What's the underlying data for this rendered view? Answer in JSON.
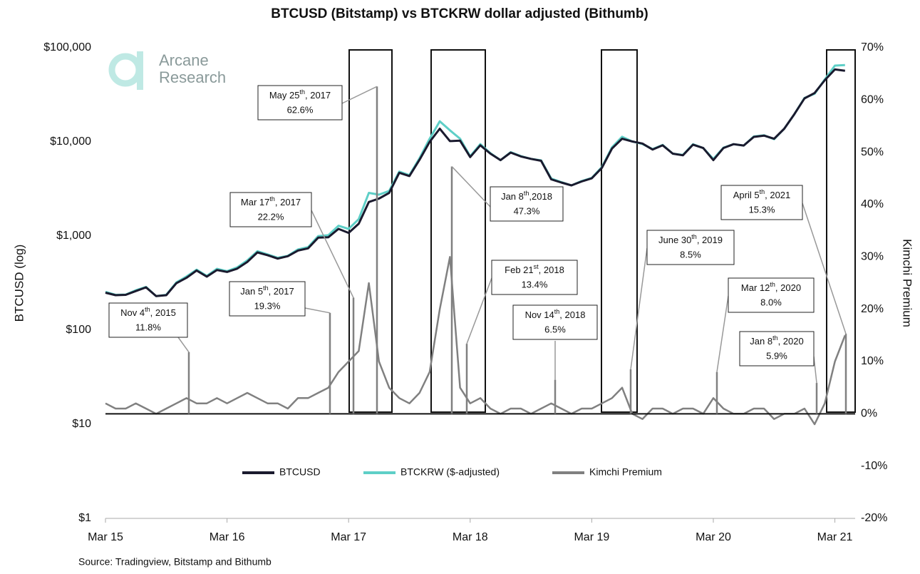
{
  "chart_data": {
    "type": "line",
    "title": "BTCUSD (Bitstamp) vs BTCKRW dollar adjusted (Bithumb)",
    "ylabel": "BTCUSD (log)",
    "y2label": "Kimchi Premium",
    "source": "Source: Tradingview, Bitstamp and Bithumb",
    "logo": [
      "Arcane",
      "Research"
    ],
    "log_y": true,
    "legend": "bottom",
    "x": [
      "2015-03",
      "2015-04",
      "2015-05",
      "2015-06",
      "2015-07",
      "2015-08",
      "2015-09",
      "2015-10",
      "2015-11",
      "2015-12",
      "2016-01",
      "2016-02",
      "2016-03",
      "2016-04",
      "2016-05",
      "2016-06",
      "2016-07",
      "2016-08",
      "2016-09",
      "2016-10",
      "2016-11",
      "2016-12",
      "2017-01",
      "2017-02",
      "2017-03",
      "2017-04",
      "2017-05",
      "2017-06",
      "2017-07",
      "2017-08",
      "2017-09",
      "2017-10",
      "2017-11",
      "2017-12",
      "2018-01",
      "2018-02",
      "2018-03",
      "2018-04",
      "2018-05",
      "2018-06",
      "2018-07",
      "2018-08",
      "2018-09",
      "2018-10",
      "2018-11",
      "2018-12",
      "2019-01",
      "2019-02",
      "2019-03",
      "2019-04",
      "2019-05",
      "2019-06",
      "2019-07",
      "2019-08",
      "2019-09",
      "2019-10",
      "2019-11",
      "2019-12",
      "2020-01",
      "2020-02",
      "2020-03",
      "2020-04",
      "2020-05",
      "2020-06",
      "2020-07",
      "2020-08",
      "2020-09",
      "2020-10",
      "2020-11",
      "2020-12",
      "2021-01",
      "2021-02",
      "2021-03",
      "2021-04"
    ],
    "xlim": [
      "2015-03",
      "2021-05"
    ],
    "xticks": [
      {
        "value": "2015-03",
        "label": "Mar 15"
      },
      {
        "value": "2016-03",
        "label": "Mar 16"
      },
      {
        "value": "2017-03",
        "label": "Mar 17"
      },
      {
        "value": "2018-03",
        "label": "Mar 18"
      },
      {
        "value": "2019-03",
        "label": "Mar 19"
      },
      {
        "value": "2020-03",
        "label": "Mar 20"
      },
      {
        "value": "2021-03",
        "label": "Mar 21"
      }
    ],
    "ylim": [
      1,
      100000
    ],
    "yticks": [
      {
        "value": 1,
        "label": "$1"
      },
      {
        "value": 10,
        "label": "$10"
      },
      {
        "value": 100,
        "label": "$100"
      },
      {
        "value": 1000,
        "label": "$1,000"
      },
      {
        "value": 10000,
        "label": "$10,000"
      },
      {
        "value": 100000,
        "label": "$100,000"
      }
    ],
    "y2lim": [
      -20,
      70
    ],
    "y2ticks": [
      {
        "value": -20,
        "label": "-20%"
      },
      {
        "value": -10,
        "label": "-10%"
      },
      {
        "value": 0,
        "label": "0%"
      },
      {
        "value": 10,
        "label": "10%"
      },
      {
        "value": 20,
        "label": "20%"
      },
      {
        "value": 30,
        "label": "30%"
      },
      {
        "value": 40,
        "label": "40%"
      },
      {
        "value": 50,
        "label": "50%"
      },
      {
        "value": 60,
        "label": "60%"
      },
      {
        "value": 70,
        "label": "70%"
      }
    ],
    "series": [
      {
        "name": "Kimchi Premium",
        "color": "#808080",
        "axis": "y2",
        "values": [
          2,
          1,
          1,
          2,
          1,
          0,
          1,
          2,
          3,
          2,
          2,
          3,
          2,
          3,
          4,
          3,
          2,
          2,
          1,
          3,
          3,
          4,
          5,
          8,
          10,
          12,
          25,
          10,
          5,
          3,
          2,
          4,
          8,
          20,
          30,
          5,
          2,
          3,
          1,
          0,
          1,
          1,
          0,
          1,
          2,
          1,
          0,
          1,
          1,
          2,
          3,
          5,
          0,
          -1,
          1,
          1,
          0,
          1,
          1,
          0,
          3,
          1,
          0,
          0,
          1,
          1,
          -1,
          0,
          0,
          1,
          -2,
          2,
          10,
          15
        ]
      },
      {
        "name": "BTCKRW ($-adjusted)",
        "color": "#5ecfc7",
        "values": [
          255,
          237,
          239,
          265,
          288,
          230,
          237,
          321,
          371,
          439,
          377,
          448,
          423,
          464,
          551,
          690,
          638,
          587,
          616,
          721,
          762,
          998,
          1019,
          1285,
          1188,
          1512,
          2875,
          2750,
          3014,
          4841,
          4427,
          6708,
          10800,
          16560,
          13260,
          10815,
          7038,
          9476,
          7575,
          6400,
          7777,
          7070,
          6600,
          6363,
          4080,
          3737,
          3450,
          3838,
          4141,
          5406,
          8755,
          11340,
          10100,
          9504,
          8383,
          9292,
          7500,
          7272,
          9444,
          8600,
          6592,
          8686,
          9450,
          9150,
          11413,
          11767,
          10692,
          13800,
          19700,
          29290,
          32438,
          46104,
          64680,
          65550
        ]
      },
      {
        "name": "BTCUSD",
        "color": "#1a1a2e",
        "values": [
          250,
          235,
          237,
          260,
          285,
          230,
          235,
          315,
          360,
          430,
          370,
          435,
          415,
          450,
          530,
          670,
          625,
          575,
          610,
          700,
          740,
          960,
          970,
          1190,
          1080,
          1350,
          2300,
          2500,
          2870,
          4700,
          4340,
          6450,
          10000,
          13800,
          10200,
          10300,
          6900,
          9200,
          7500,
          6400,
          7700,
          7000,
          6600,
          6300,
          4000,
          3700,
          3450,
          3800,
          4100,
          5300,
          8500,
          10800,
          10100,
          9600,
          8300,
          9200,
          7500,
          7200,
          9350,
          8600,
          6400,
          8600,
          9450,
          9150,
          11300,
          11650,
          10800,
          13800,
          19700,
          29000,
          33100,
          45200,
          58800,
          57000
        ]
      }
    ],
    "annotations": [
      {
        "date": "Nov 4",
        "ordinal": "th",
        "rest": ", 2015",
        "value": 11.8,
        "value_label": "11.8%"
      },
      {
        "date": "Jan 5",
        "ordinal": "th",
        "rest": ", 2017",
        "value": 19.3,
        "value_label": "19.3%"
      },
      {
        "date": "Mar 17",
        "ordinal": "th",
        "rest": ", 2017",
        "value": 22.2,
        "value_label": "22.2%"
      },
      {
        "date": "May 25",
        "ordinal": "th",
        "rest": ", 2017",
        "value": 62.6,
        "value_label": "62.6%"
      },
      {
        "date": "Jan 8",
        "ordinal": "th",
        "rest": ",2018",
        "value": 47.3,
        "value_label": "47.3%"
      },
      {
        "date": "Feb 21",
        "ordinal": "st",
        "rest": ", 2018",
        "value": 13.4,
        "value_label": "13.4%"
      },
      {
        "date": "Nov 14",
        "ordinal": "th",
        "rest": ", 2018",
        "value": 6.5,
        "value_label": "6.5%"
      },
      {
        "date": "June 30",
        "ordinal": "th",
        "rest": ", 2019",
        "value": 8.5,
        "value_label": "8.5%"
      },
      {
        "date": "Mar 12",
        "ordinal": "th",
        "rest": ", 2020",
        "value": 8.0,
        "value_label": "8.0%"
      },
      {
        "date": "Jan 8",
        "ordinal": "th",
        "rest": ", 2020",
        "value": 5.9,
        "value_label": "5.9%"
      },
      {
        "date": "April 5",
        "ordinal": "th",
        "rest": ", 2021",
        "value": 15.3,
        "value_label": "15.3%"
      }
    ]
  }
}
